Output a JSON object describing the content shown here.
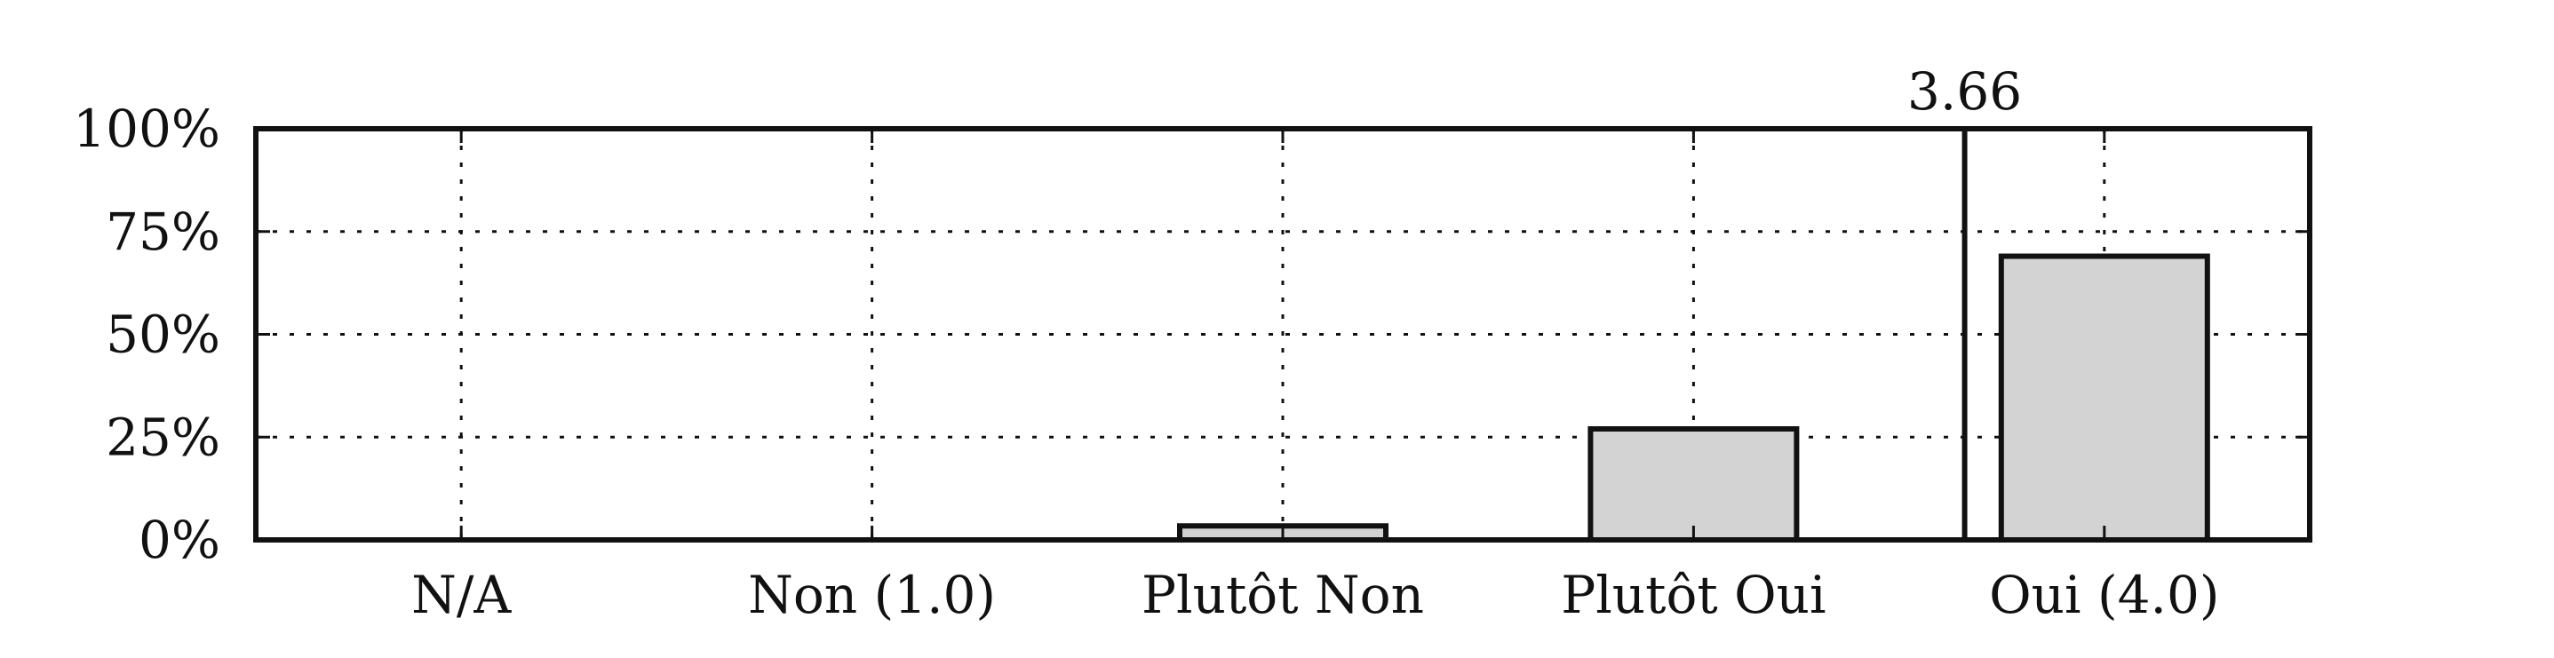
{
  "chart_data": {
    "type": "bar",
    "title": "",
    "xlabel": "",
    "ylabel": "",
    "categories": [
      "N/A",
      "Non (1.0)",
      "Plutôt Non",
      "Plutôt Oui",
      "Oui (4.0)"
    ],
    "values": [
      0,
      0,
      3.4,
      27,
      69
    ],
    "ylim": [
      0,
      100
    ],
    "yticks": [
      0,
      25,
      50,
      75,
      100
    ],
    "ytick_labels": [
      "0%",
      "25%",
      "50%",
      "75%",
      "100%"
    ],
    "grid": true,
    "mean_value": 3.66,
    "mean_label": "3.66",
    "scale": {
      "min_value": 1.0,
      "max_value": 4.0,
      "min_category": "Non (1.0)",
      "max_category": "Oui (4.0)"
    },
    "bar_color": "#d3d3d3",
    "edge_color": "#111111"
  }
}
